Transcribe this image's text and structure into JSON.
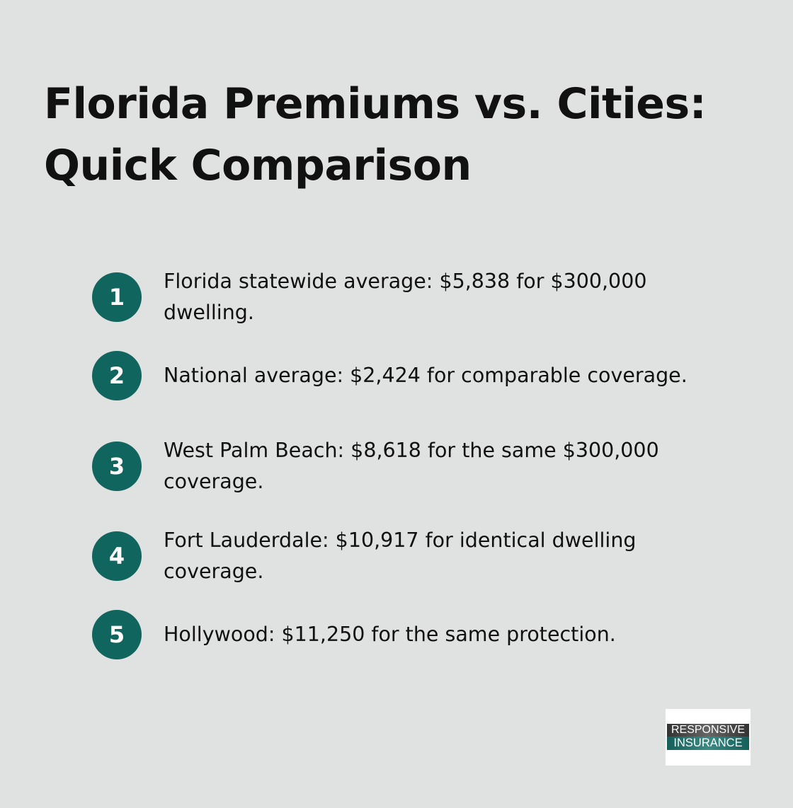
{
  "title": "Florida Premiums vs. Cities: Quick Comparison",
  "accent_color": "#11655f",
  "items": [
    {
      "number": "1",
      "text": "Florida statewide average: $5,838 for $300,000 dwelling."
    },
    {
      "number": "2",
      "text": "National average: $2,424 for comparable coverage."
    },
    {
      "number": "3",
      "text": "West Palm Beach: $8,618 for the same $300,000 coverage."
    },
    {
      "number": "4",
      "text": "Fort Lauderdale: $10,917 for identical dwelling coverage."
    },
    {
      "number": "5",
      "text": "Hollywood: $11,250 for the same protection."
    }
  ],
  "logo": {
    "line1": "RESPONSIVE",
    "line2": "INSURANCE"
  }
}
